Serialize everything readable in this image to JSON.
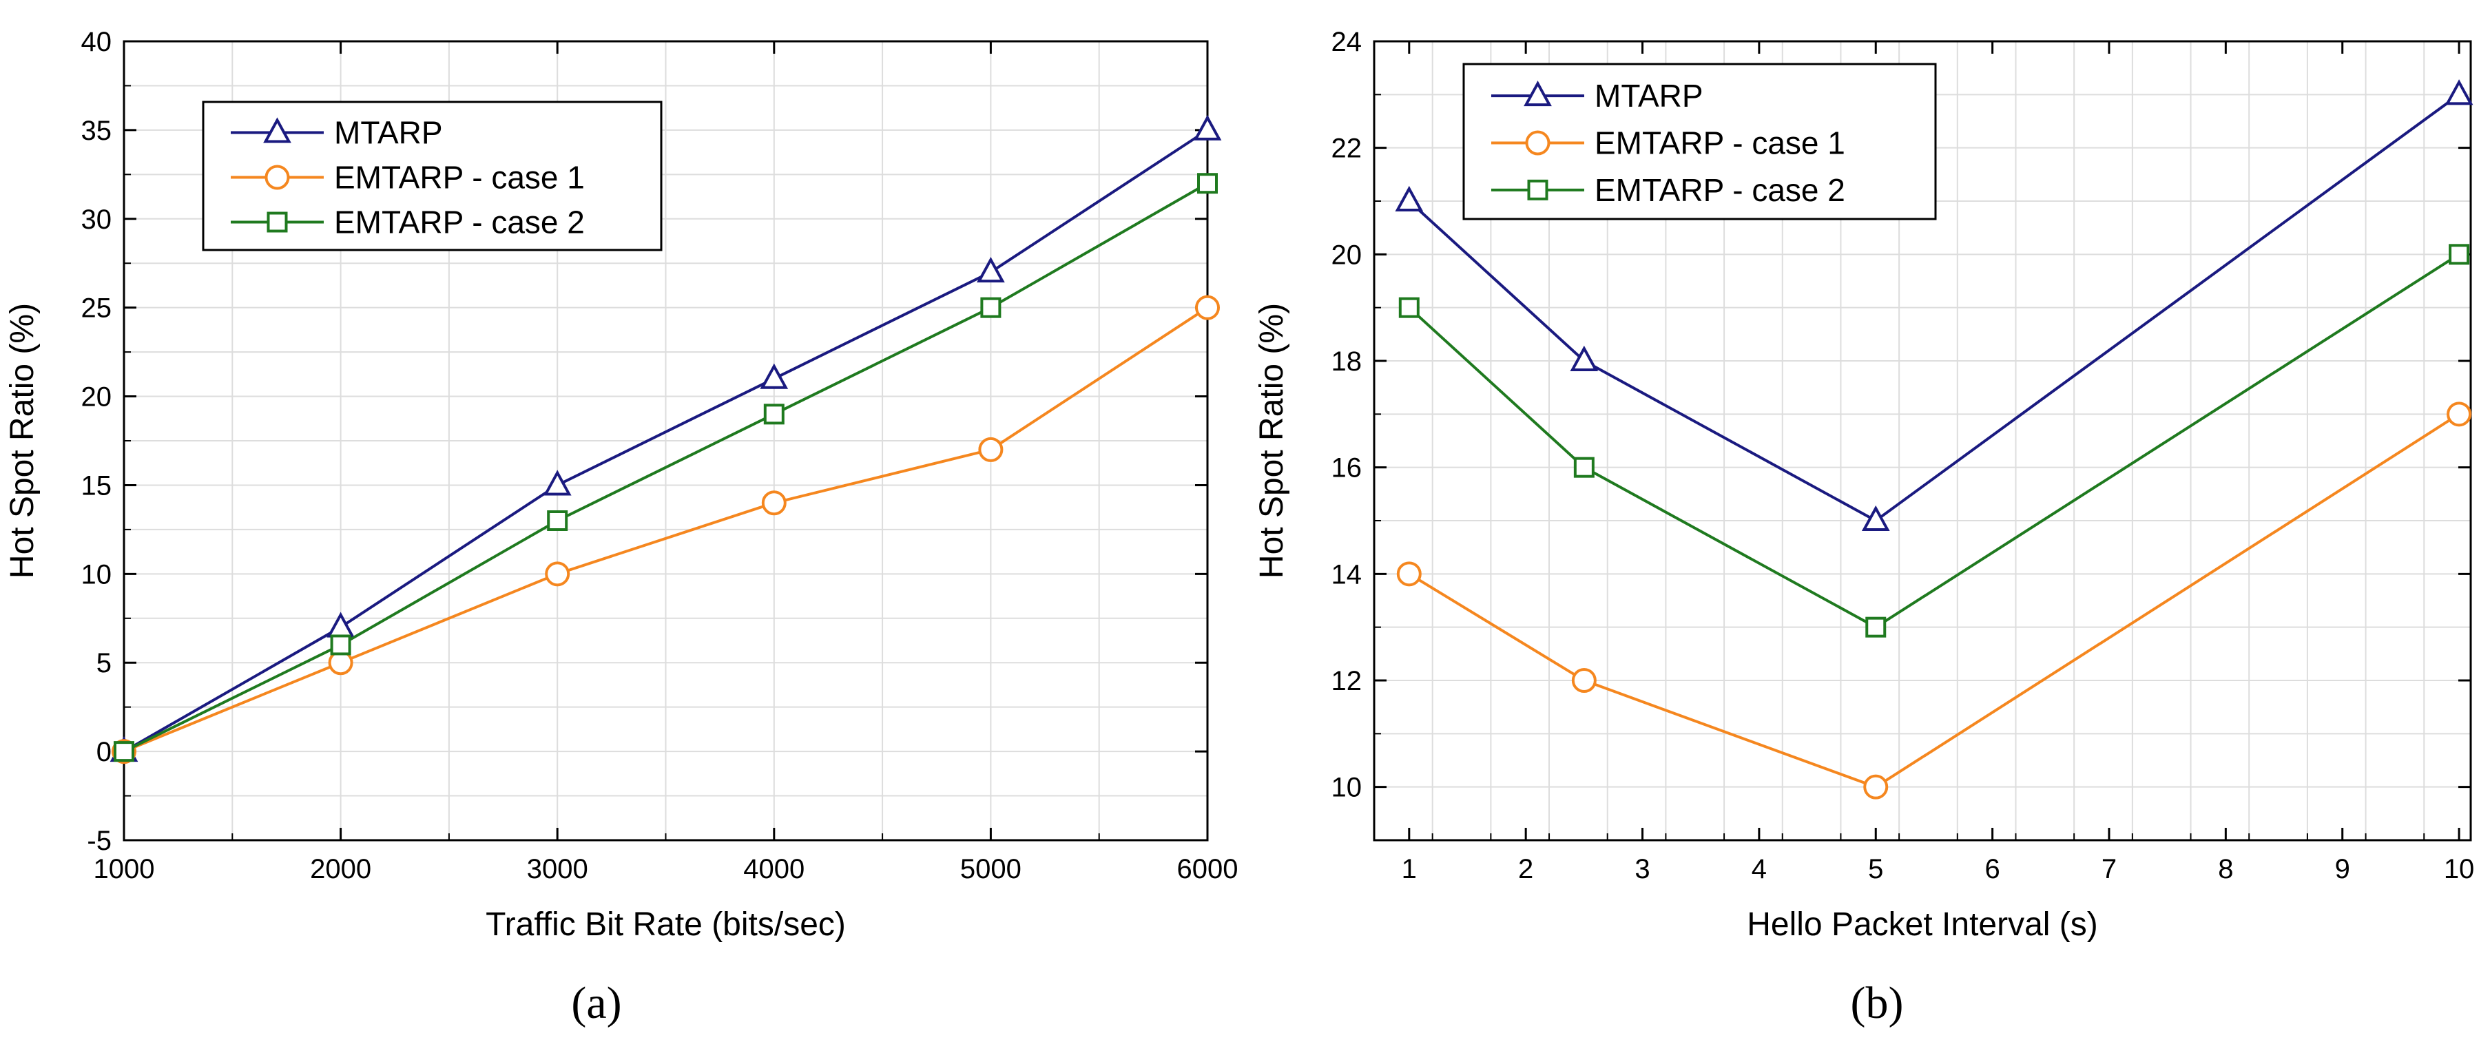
{
  "colors": {
    "mtarp": "#1a1a80",
    "case1": "#f5871f",
    "case2": "#1f7a1f",
    "grid": "#dddddd",
    "axis": "#000000"
  },
  "chart_data": [
    {
      "type": "line",
      "caption": "(a)",
      "title": "",
      "xlabel": "Traffic Bit Rate (bits/sec)",
      "ylabel": "Hot Spot Ratio (%)",
      "xlim": [
        1000,
        6000
      ],
      "ylim": [
        -5,
        40
      ],
      "xticks": [
        1000,
        2000,
        3000,
        4000,
        5000,
        6000
      ],
      "xtick_labels": [
        "1000",
        "2000",
        "3000",
        "4000",
        "5000",
        "6000"
      ],
      "yticks": [
        -5,
        0,
        5,
        10,
        15,
        20,
        25,
        30,
        35,
        40
      ],
      "ytick_labels": [
        "-5",
        "0",
        "5",
        "10",
        "15",
        "20",
        "25",
        "30",
        "35",
        "40"
      ],
      "grid": true,
      "legend_position": "top-left",
      "x": [
        1000,
        2000,
        3000,
        4000,
        5000,
        6000
      ],
      "series": [
        {
          "name": "MTARP",
          "marker": "triangle",
          "values": [
            0,
            7,
            15,
            21,
            27,
            35
          ]
        },
        {
          "name": "EMTARP - case 1",
          "marker": "circle",
          "values": [
            0,
            5,
            10,
            14,
            17,
            25
          ]
        },
        {
          "name": "EMTARP - case 2",
          "marker": "square",
          "values": [
            0,
            6,
            13,
            19,
            25,
            32
          ]
        }
      ]
    },
    {
      "type": "line",
      "caption": "(b)",
      "title": "",
      "xlabel": "Hello Packet Interval (s)",
      "ylabel": "Hot Spot Ratio (%)",
      "xlim": [
        0.7,
        10.1
      ],
      "ylim": [
        9,
        24
      ],
      "xticks": [
        1,
        2,
        3,
        4,
        5,
        6,
        7,
        8,
        9,
        10
      ],
      "xtick_labels": [
        "1",
        "2",
        "3",
        "4",
        "5",
        "6",
        "7",
        "8",
        "9",
        "10"
      ],
      "yticks": [
        10,
        12,
        14,
        16,
        18,
        20,
        22,
        24
      ],
      "ytick_labels": [
        "10",
        "12",
        "14",
        "16",
        "18",
        "20",
        "22",
        "24"
      ],
      "grid": true,
      "legend_position": "top-left",
      "x": [
        1,
        2.5,
        5,
        10
      ],
      "series": [
        {
          "name": "MTARP",
          "marker": "triangle",
          "values": [
            21,
            18,
            15,
            23
          ]
        },
        {
          "name": "EMTARP - case 1",
          "marker": "circle",
          "values": [
            14,
            12,
            10,
            17
          ]
        },
        {
          "name": "EMTARP - case 2",
          "marker": "square",
          "values": [
            19,
            16,
            13,
            20
          ]
        }
      ]
    }
  ]
}
